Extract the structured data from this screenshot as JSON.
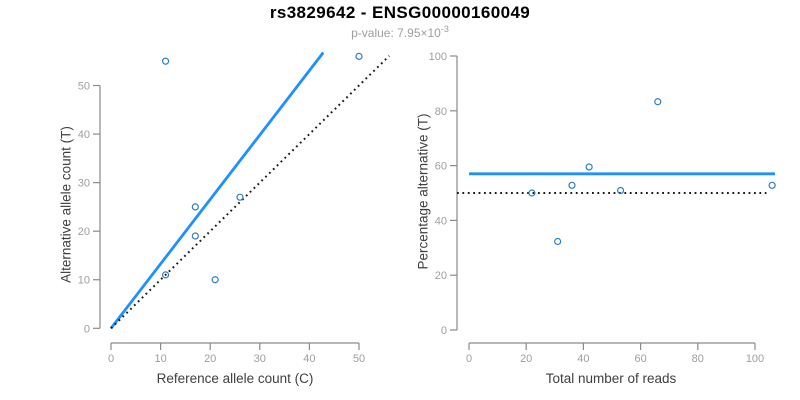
{
  "header": {
    "title": "rs3829642 - ENSG00000160049",
    "pvalue_prefix": "p-value: 7.95×10",
    "pvalue_exponent": "-3"
  },
  "colors": {
    "fit_line": "#1E90FF",
    "reference_line": "#1A1A1A",
    "point": "#2F7DC3",
    "axis": "#8A8A8A",
    "tick_label": "#9E9E9E",
    "axis_title": "#404040",
    "title": "#000000",
    "subtitle": "#9E9E9E"
  },
  "chart_data": [
    {
      "type": "scatter",
      "panel": "allele-counts",
      "xlabel": "Reference allele count (C)",
      "ylabel": "Alternative allele count (T)",
      "xticks": [
        0,
        10,
        20,
        30,
        40,
        50
      ],
      "yticks": [
        0,
        10,
        20,
        30,
        40,
        50
      ],
      "xlim": [
        -2.1,
        56.1
      ],
      "ylim": [
        -3.0,
        56.8
      ],
      "grid": false,
      "points": [
        [
          11,
          11
        ],
        [
          11,
          55
        ],
        [
          17,
          19
        ],
        [
          17,
          25
        ],
        [
          21,
          10
        ],
        [
          26,
          27
        ],
        [
          50,
          56
        ]
      ],
      "lines": [
        {
          "name": "fitted-ase-line",
          "style": "solid",
          "slope": 1.327,
          "intercept": 0,
          "color_key": "fit_line"
        },
        {
          "name": "identity-line",
          "style": "dotted",
          "slope": 1,
          "intercept": 0,
          "color_key": "reference_line"
        }
      ]
    },
    {
      "type": "scatter",
      "panel": "percentage-vs-coverage",
      "xlabel": "Total number of reads",
      "ylabel": "Percentage alternative (T)",
      "xticks": [
        0,
        20,
        40,
        60,
        80,
        100
      ],
      "yticks": [
        0,
        20,
        40,
        60,
        80,
        100
      ],
      "xlim": [
        -4.2,
        106.7
      ],
      "ylim": [
        -4.7,
        104.3
      ],
      "grid": false,
      "points": [
        [
          22,
          50
        ],
        [
          31,
          32.3
        ],
        [
          36,
          52.8
        ],
        [
          42,
          59.5
        ],
        [
          53,
          50.9
        ],
        [
          66,
          83.3
        ],
        [
          106,
          52.8
        ]
      ],
      "lines": [
        {
          "name": "mean-percentage-line",
          "style": "solid",
          "y": 57.0,
          "xspan": [
            0,
            107
          ],
          "color_key": "fit_line"
        },
        {
          "name": "null-50-percent-line",
          "style": "dotted",
          "y": 50,
          "xspan": [
            -4.2,
            104
          ],
          "color_key": "reference_line"
        }
      ]
    }
  ]
}
